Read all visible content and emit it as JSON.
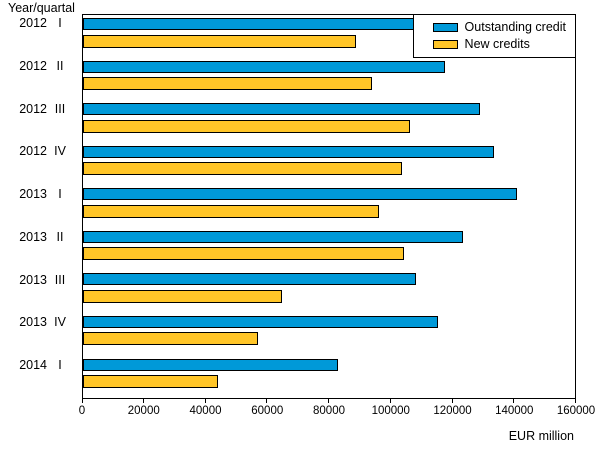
{
  "corner_title": "Year/quartal",
  "chart_data": {
    "type": "bar",
    "orientation": "horizontal",
    "title": "",
    "xlabel": "EUR million",
    "ylabel": "Year/quartal",
    "grid": false,
    "legend_position": "top-right",
    "xlim": [
      0,
      160000
    ],
    "xticks": [
      0,
      20000,
      40000,
      60000,
      80000,
      100000,
      120000,
      140000,
      160000
    ],
    "categories": [
      {
        "year": "2012",
        "quarter": "I"
      },
      {
        "year": "2012",
        "quarter": "II"
      },
      {
        "year": "2012",
        "quarter": "III"
      },
      {
        "year": "2012",
        "quarter": "IV"
      },
      {
        "year": "2013",
        "quarter": "I"
      },
      {
        "year": "2013",
        "quarter": "II"
      },
      {
        "year": "2013",
        "quarter": "III"
      },
      {
        "year": "2013",
        "quarter": "IV"
      },
      {
        "year": "2014",
        "quarter": "I"
      }
    ],
    "series": [
      {
        "name": "Outstanding credit",
        "color": "#0099D8",
        "values": [
          108800,
          117800,
          129100,
          133500,
          141300,
          123500,
          108400,
          115600,
          82900
        ]
      },
      {
        "name": "New credits",
        "color": "#FFC528",
        "values": [
          88700,
          94100,
          106500,
          103900,
          96100,
          104400,
          64800,
          56800,
          44000
        ]
      }
    ]
  }
}
